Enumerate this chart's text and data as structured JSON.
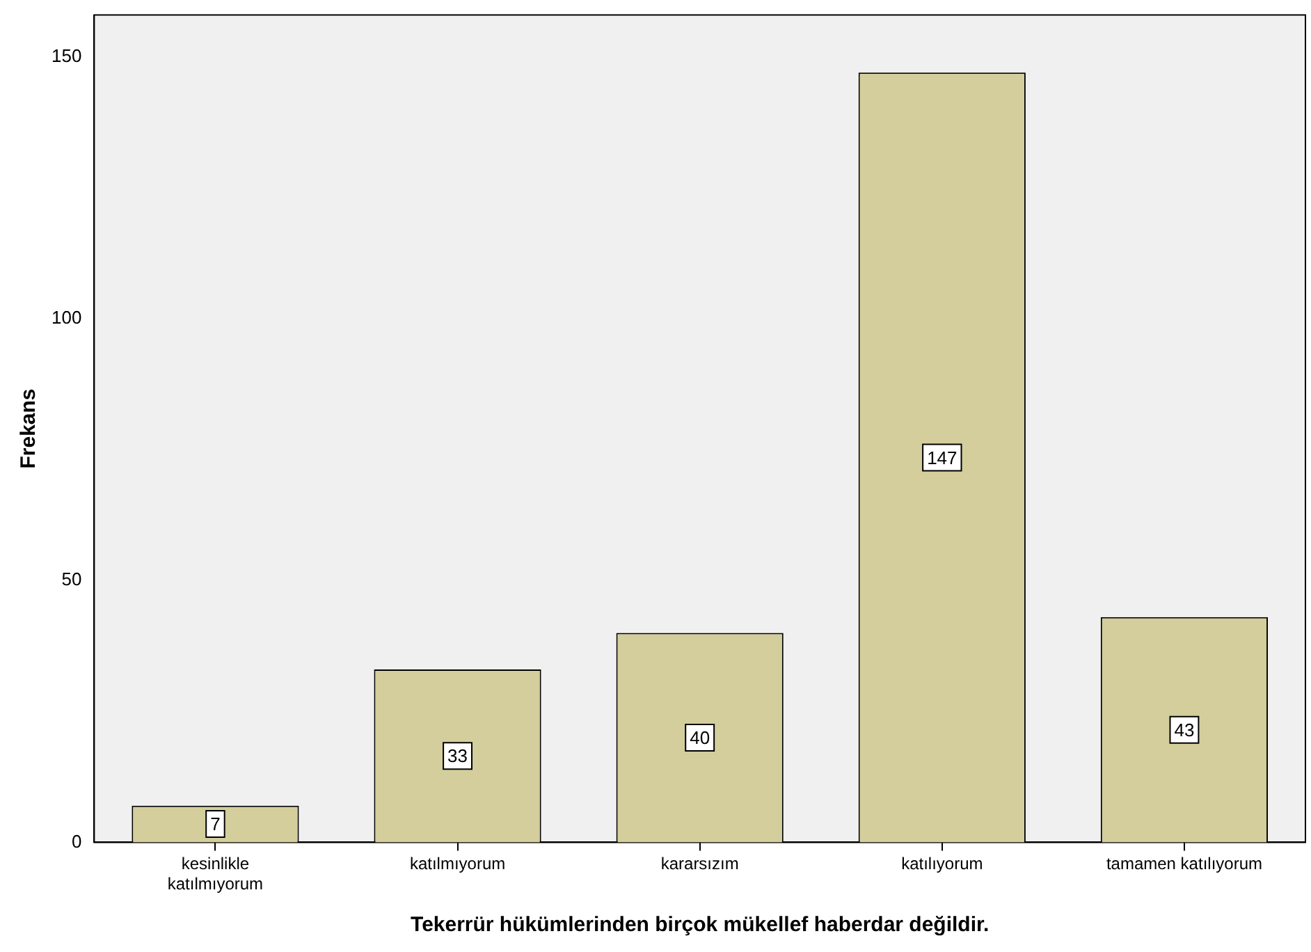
{
  "chart_data": {
    "type": "bar",
    "xlabel": "Tekerrür hükümlerinden birçok mükellef haberdar değildir.",
    "ylabel": "Frekans",
    "categories": [
      "kesinlikle katılmıyorum",
      "katılmıyorum",
      "kararsızım",
      "katılıyorum",
      "tamamen katılıyorum"
    ],
    "values": [
      7,
      33,
      40,
      147,
      43
    ],
    "color": "#d3ce9b",
    "ylim": [
      0,
      158
    ],
    "yticks": [
      0,
      50,
      100,
      150
    ],
    "grid": false,
    "data_labels": true
  }
}
